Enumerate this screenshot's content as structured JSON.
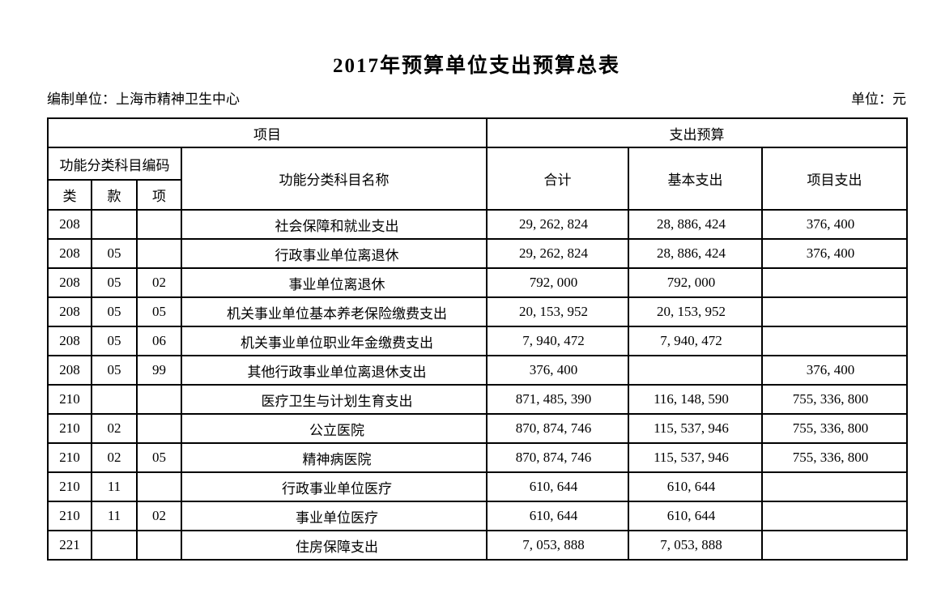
{
  "page": {
    "title": "2017年预算单位支出预算总表",
    "prepared_by_label": "编制单位：上海市精神卫生中心",
    "currency_unit_label": "单位：元"
  },
  "colors": {
    "text": "#000000",
    "border": "#000000",
    "background": "#ffffff"
  },
  "table": {
    "header": {
      "project_group": "项目",
      "budget_group": "支出预算",
      "func_code_group": "功能分类科目编码",
      "func_name": "功能分类科目名称",
      "total": "合计",
      "basic_expenditure": "基本支出",
      "project_expenditure": "项目支出",
      "code_class": "类",
      "code_section": "款",
      "code_item": "项"
    },
    "rows": [
      {
        "class_code": "208",
        "section_code": "",
        "item_code": "",
        "name": "社会保障和就业支出",
        "total": "29, 262, 824",
        "basic": "28, 886, 424",
        "project": "376, 400"
      },
      {
        "class_code": "208",
        "section_code": "05",
        "item_code": "",
        "name": "行政事业单位离退休",
        "total": "29, 262, 824",
        "basic": "28, 886, 424",
        "project": "376, 400"
      },
      {
        "class_code": "208",
        "section_code": "05",
        "item_code": "02",
        "name": "事业单位离退休",
        "total": "792, 000",
        "basic": "792, 000",
        "project": ""
      },
      {
        "class_code": "208",
        "section_code": "05",
        "item_code": "05",
        "name": "机关事业单位基本养老保险缴费支出",
        "total": "20, 153, 952",
        "basic": "20, 153, 952",
        "project": ""
      },
      {
        "class_code": "208",
        "section_code": "05",
        "item_code": "06",
        "name": "机关事业单位职业年金缴费支出",
        "total": "7, 940, 472",
        "basic": "7, 940, 472",
        "project": ""
      },
      {
        "class_code": "208",
        "section_code": "05",
        "item_code": "99",
        "name": "其他行政事业单位离退休支出",
        "total": "376, 400",
        "basic": "",
        "project": "376, 400"
      },
      {
        "class_code": "210",
        "section_code": "",
        "item_code": "",
        "name": "医疗卫生与计划生育支出",
        "total": "871, 485, 390",
        "basic": "116, 148, 590",
        "project": "755, 336, 800"
      },
      {
        "class_code": "210",
        "section_code": "02",
        "item_code": "",
        "name": "公立医院",
        "total": "870, 874, 746",
        "basic": "115, 537, 946",
        "project": "755, 336, 800"
      },
      {
        "class_code": "210",
        "section_code": "02",
        "item_code": "05",
        "name": "精神病医院",
        "total": "870, 874, 746",
        "basic": "115, 537, 946",
        "project": "755, 336, 800"
      },
      {
        "class_code": "210",
        "section_code": "11",
        "item_code": "",
        "name": "行政事业单位医疗",
        "total": "610, 644",
        "basic": "610, 644",
        "project": ""
      },
      {
        "class_code": "210",
        "section_code": "11",
        "item_code": "02",
        "name": "事业单位医疗",
        "total": "610, 644",
        "basic": "610, 644",
        "project": ""
      },
      {
        "class_code": "221",
        "section_code": "",
        "item_code": "",
        "name": "住房保障支出",
        "total": "7, 053, 888",
        "basic": "7, 053, 888",
        "project": ""
      }
    ]
  }
}
